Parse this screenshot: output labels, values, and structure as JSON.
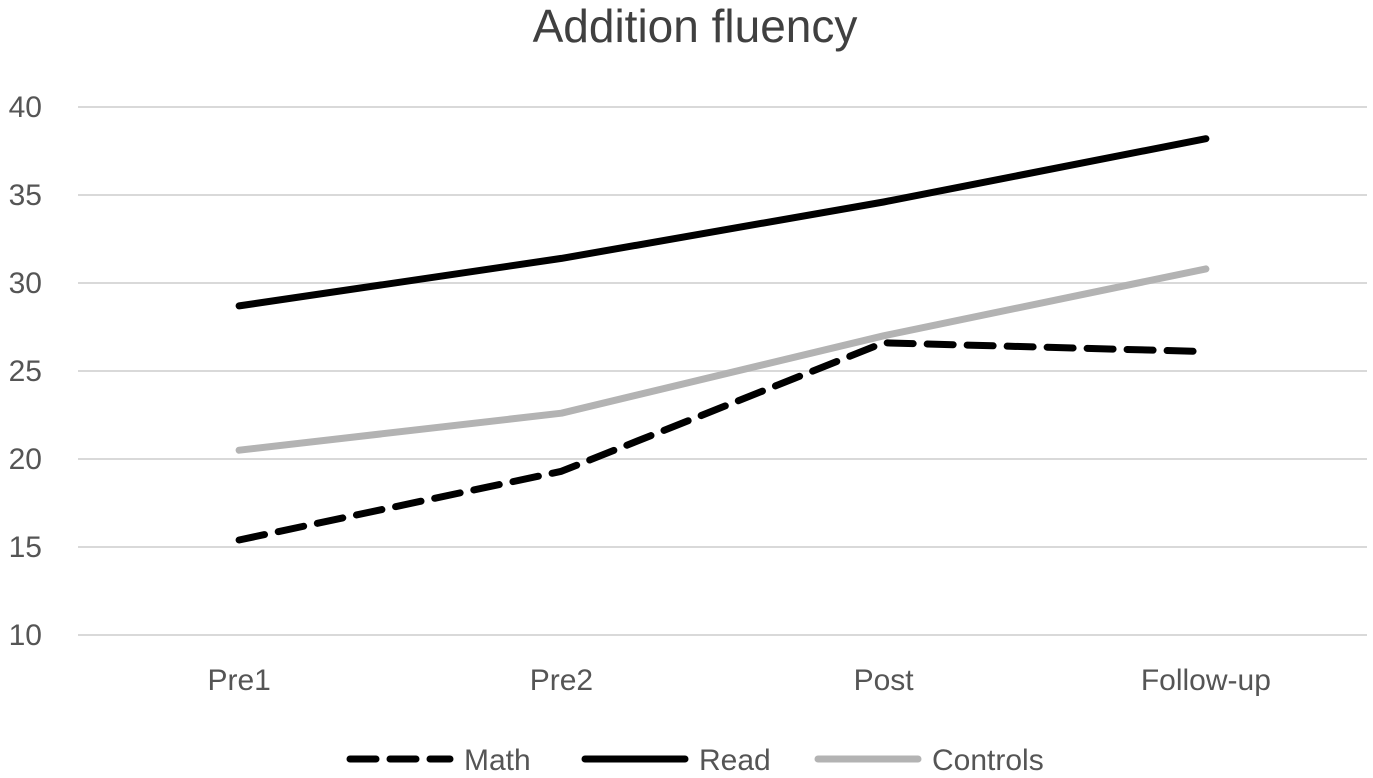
{
  "chart_data": {
    "type": "line",
    "title": "Addition fluency",
    "xlabel": "",
    "ylabel": "",
    "categories": [
      "Pre1",
      "Pre2",
      "Post",
      "Follow-up"
    ],
    "ylim": [
      10,
      40
    ],
    "yticks": [
      10,
      15,
      20,
      25,
      30,
      35,
      40
    ],
    "grid": true,
    "legend_position": "bottom",
    "series": [
      {
        "name": "Math",
        "values": [
          15.4,
          19.3,
          26.6,
          26.1
        ],
        "color": "#000000",
        "style": "dashed"
      },
      {
        "name": "Read",
        "values": [
          28.7,
          31.4,
          34.6,
          38.2
        ],
        "color": "#000000",
        "style": "solid"
      },
      {
        "name": "Controls",
        "values": [
          20.5,
          22.6,
          27.0,
          30.8
        ],
        "color": "#b3b3b3",
        "style": "solid"
      }
    ]
  }
}
